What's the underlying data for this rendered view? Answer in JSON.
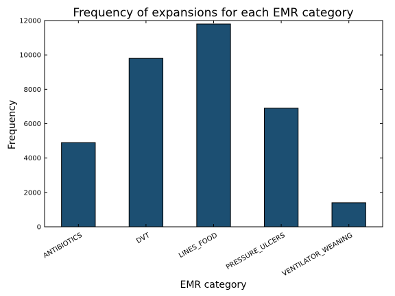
{
  "chart_data": {
    "type": "bar",
    "title": "Frequency of expansions for each EMR category",
    "xlabel": "EMR category",
    "ylabel": "Frequency",
    "categories": [
      "ANTIBIOTICS",
      "DVT",
      "LINES_FOOD",
      "PRESSURE_ULCERS",
      "VENTILATOR_WEANING"
    ],
    "values": [
      4900,
      9800,
      11800,
      6900,
      1400
    ],
    "ylim": [
      0,
      12000
    ],
    "yticks": [
      0,
      2000,
      4000,
      6000,
      8000,
      10000,
      12000
    ],
    "grid": false,
    "legend": "none",
    "bar_color": "#1c4f72",
    "edge_color": "#000000"
  }
}
